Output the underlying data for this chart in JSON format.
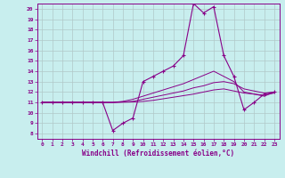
{
  "xlabel": "Windchill (Refroidissement éolien,°C)",
  "bg_color": "#c8eeee",
  "line_color": "#880088",
  "grid_color": "#b0c8c8",
  "xlim": [
    -0.5,
    23.5
  ],
  "ylim": [
    7.5,
    20.5
  ],
  "yticks": [
    8,
    9,
    10,
    11,
    12,
    13,
    14,
    15,
    16,
    17,
    18,
    19,
    20
  ],
  "xticks": [
    0,
    1,
    2,
    3,
    4,
    5,
    6,
    7,
    8,
    9,
    10,
    11,
    12,
    13,
    14,
    15,
    16,
    17,
    18,
    19,
    20,
    21,
    22,
    23
  ],
  "hours": [
    0,
    1,
    2,
    3,
    4,
    5,
    6,
    7,
    8,
    9,
    10,
    11,
    12,
    13,
    14,
    15,
    16,
    17,
    18,
    19,
    20,
    21,
    22,
    23
  ],
  "temp": [
    11,
    11,
    11,
    11,
    11,
    11,
    11,
    8.3,
    9.0,
    9.5,
    13.0,
    13.5,
    14.0,
    14.5,
    15.5,
    20.5,
    19.6,
    20.2,
    15.5,
    13.5,
    10.3,
    11.0,
    11.8,
    12.0
  ],
  "line2": [
    11,
    11,
    11,
    11,
    11,
    11,
    11,
    11.0,
    11.1,
    11.3,
    11.6,
    11.9,
    12.2,
    12.5,
    12.8,
    13.2,
    13.6,
    14.0,
    13.5,
    13.0,
    12.0,
    11.8,
    11.6,
    12.0
  ],
  "line3": [
    11,
    11,
    11,
    11,
    11,
    11,
    11,
    11.0,
    11.05,
    11.1,
    11.3,
    11.5,
    11.7,
    11.9,
    12.1,
    12.4,
    12.6,
    12.9,
    13.0,
    12.8,
    12.3,
    12.1,
    11.9,
    12.0
  ],
  "line4": [
    11,
    11,
    11,
    11,
    11,
    11,
    11,
    11.0,
    11.02,
    11.05,
    11.1,
    11.2,
    11.35,
    11.5,
    11.65,
    11.8,
    12.0,
    12.2,
    12.3,
    12.1,
    11.9,
    11.8,
    11.7,
    11.9
  ]
}
